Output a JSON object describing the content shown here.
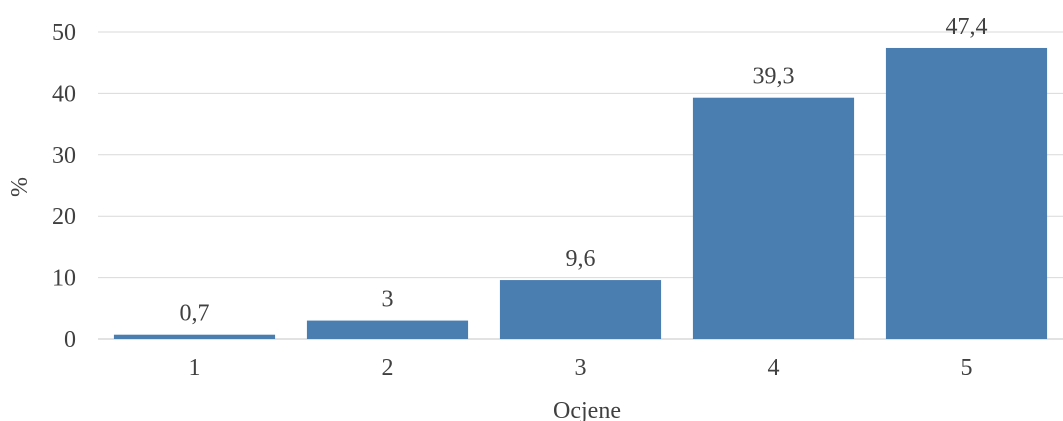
{
  "chart_data": {
    "type": "bar",
    "categories": [
      "1",
      "2",
      "3",
      "4",
      "5"
    ],
    "values": [
      0.7,
      3,
      9.6,
      39.3,
      47.4
    ],
    "data_labels": [
      "0,7",
      "3",
      "9,6",
      "39,3",
      "47,4"
    ],
    "y_ticks": [
      0,
      10,
      20,
      30,
      40,
      50
    ],
    "ylim": [
      0,
      50
    ],
    "xlabel": "Ocjene",
    "ylabel": "%",
    "grid": true,
    "legend": "none",
    "colors": {
      "bar": "#4a7eb0",
      "grid": "#d9d9d9",
      "text": "#404040"
    }
  }
}
